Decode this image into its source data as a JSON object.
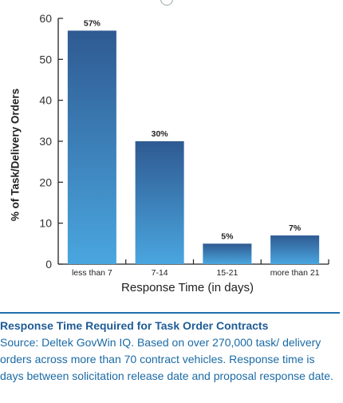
{
  "chart_data": {
    "type": "bar",
    "categories": [
      "less than 7",
      "7-14",
      "15-21",
      "more than 21"
    ],
    "values": [
      57,
      30,
      5,
      7
    ],
    "data_labels": [
      "57%",
      "30%",
      "5%",
      "7%"
    ],
    "ylabel": "% of Task/Delivery Orders",
    "xlabel": "Response Time (in days)",
    "ylim": [
      0,
      60
    ],
    "yticks": [
      0,
      10,
      20,
      30,
      40,
      50,
      60
    ],
    "grid": false,
    "bar_color_top": "#2f5a92",
    "bar_color_bottom": "#4aa6df"
  },
  "caption": {
    "title": "Response Time Required for Task Order Contracts",
    "text": "Source: Deltek GovWin IQ. Based on over 270,000 task/ delivery orders across more than 70 contract vehicles. Response time is days between solicitation release date and proposal response date."
  }
}
